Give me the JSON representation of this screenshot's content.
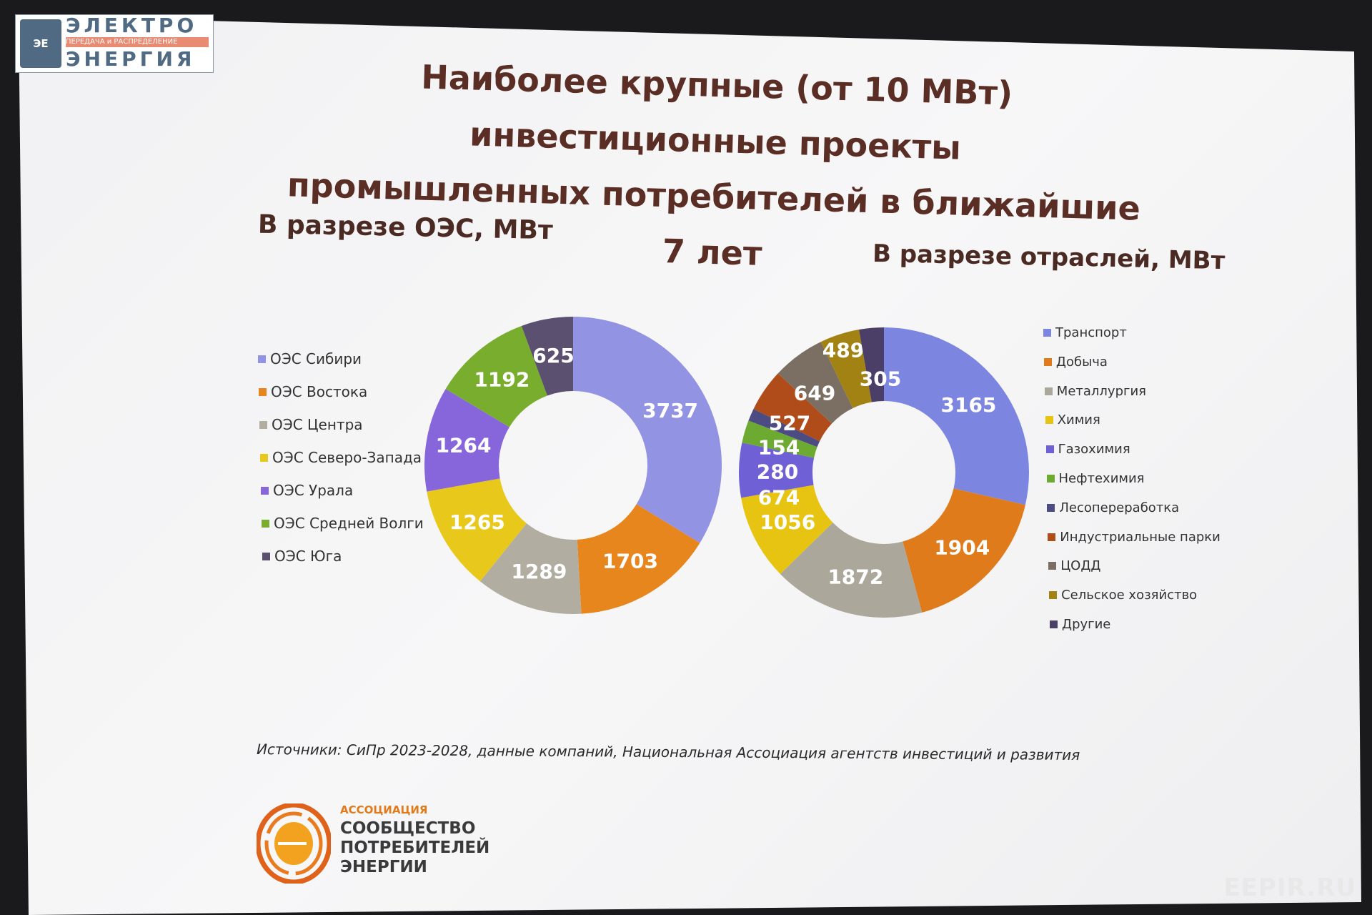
{
  "title_line1": "Наиболее крупные (от 10 МВт) инвестиционные проекты",
  "title_line2": "промышленных потребителей в ближайшие 7 лет",
  "source": "Источники: СиПр 2023-2028, данные компаний, Национальная Ассоциация агентств инвестиций и развития",
  "top_logo": {
    "line1": "ЭЛЕКТРО",
    "line2": "ПЕРЕДАЧА и РАСПРЕДЕЛЕНИЕ",
    "line3": "ЭНЕРГИЯ",
    "mark": "ЭЕ"
  },
  "assoc_logo": {
    "line0": "АССОЦИАЦИЯ",
    "line1": "СООБЩЕСТВО",
    "line2": "ПОТРЕБИТЕЛЕЙ",
    "line3": "ЭНЕРГИИ"
  },
  "watermark": "EEPIR.RU",
  "chart_data": [
    {
      "type": "pie",
      "donut": true,
      "title": "В разрезе ОЭС, МВт",
      "legend": "left",
      "categories": [
        "ОЭС Сибири",
        "ОЭС Востока",
        "ОЭС Центра",
        "ОЭС Северо-Запада",
        "ОЭС Урала",
        "ОЭС Средней Волги",
        "ОЭС Юга"
      ],
      "values": [
        3737,
        1703,
        1289,
        1265,
        1264,
        1192,
        625
      ],
      "colors": [
        "#9393e4",
        "#e8861e",
        "#b2ada1",
        "#e9c81c",
        "#8766dc",
        "#79ad2e",
        "#5c5070"
      ]
    },
    {
      "type": "pie",
      "donut": true,
      "title": "В разрезе отраслей, МВт",
      "legend": "right",
      "categories": [
        "Транспорт",
        "Добыча",
        "Металлургия",
        "Химия",
        "Газохимия",
        "Нефтехимия",
        "Лесопереработка",
        "Индустриальные парки",
        "ЦОДД",
        "Сельское хозяйство",
        "Другие"
      ],
      "values": [
        3165,
        1904,
        1872,
        1056,
        674,
        280,
        154,
        527,
        649,
        489,
        305
      ],
      "colors": [
        "#7c86e0",
        "#e07b1c",
        "#aba79b",
        "#e8c412",
        "#7060d6",
        "#6caa32",
        "#4c4c82",
        "#b04c1a",
        "#7b6f63",
        "#a28212",
        "#4b3f68"
      ]
    }
  ]
}
